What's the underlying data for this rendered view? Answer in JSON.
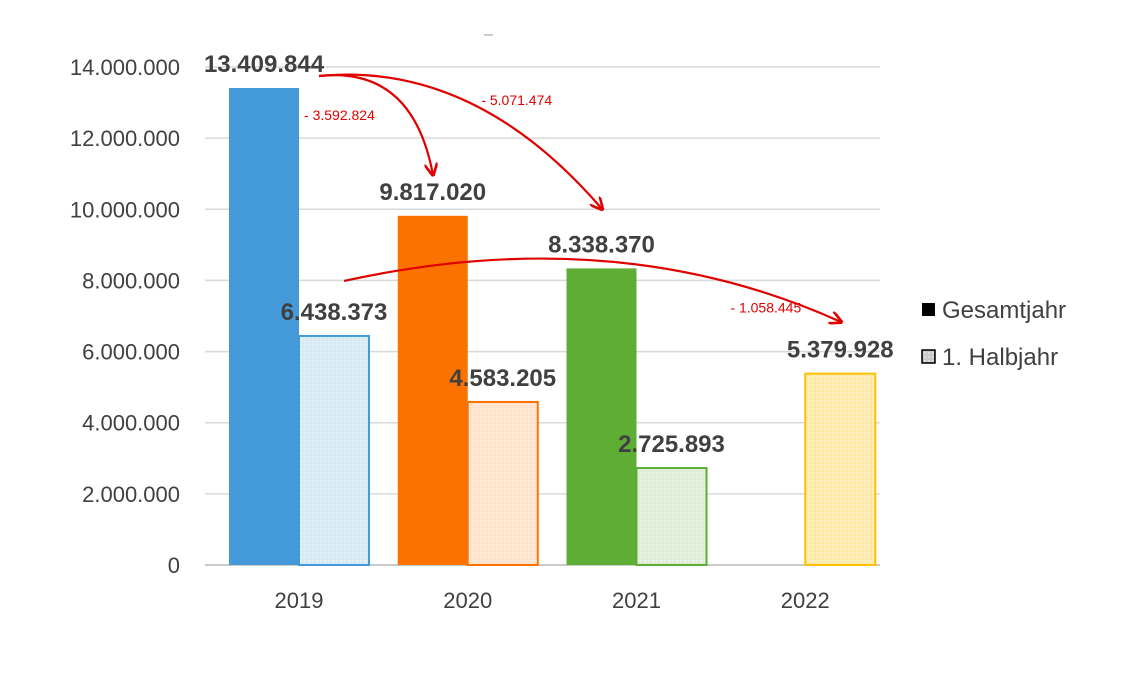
{
  "chart_data": {
    "type": "bar",
    "categories": [
      "2019",
      "2020",
      "2021",
      "2022"
    ],
    "series": [
      {
        "name": "Gesamtjahr",
        "values": [
          13409844,
          9817020,
          8338370,
          null
        ]
      },
      {
        "name": "1. Halbjahr",
        "values": [
          6438373,
          4583205,
          2725893,
          5379928
        ]
      }
    ],
    "data_labels": {
      "Gesamtjahr": [
        "13.409.844",
        "9.817.020",
        "8.338.370",
        ""
      ],
      "1. Halbjahr": [
        "6.438.373",
        "4.583.205",
        "2.725.893",
        "5.379.928"
      ]
    },
    "category_colors": [
      "#4499d9",
      "#fc7200",
      "#5ead35",
      "#ffc000"
    ],
    "ylim": [
      0,
      14000000
    ],
    "yticks": [
      0,
      2000000,
      4000000,
      6000000,
      8000000,
      10000000,
      12000000,
      14000000
    ],
    "ytick_labels": [
      "0",
      "2.000.000",
      "4.000.000",
      "6.000.000",
      "8.000.000",
      "10.000.000",
      "12.000.000",
      "14.000.000"
    ],
    "grid": true,
    "legend_position": "right",
    "legend": [
      "Gesamtjahr",
      "1. Halbjahr"
    ],
    "annotations": [
      {
        "text": "- 3.592.824",
        "from": {
          "series": "Gesamtjahr",
          "category": "2019"
        },
        "to": {
          "series": "Gesamtjahr",
          "category": "2020"
        }
      },
      {
        "text": "- 5.071.474",
        "from": {
          "series": "Gesamtjahr",
          "category": "2019"
        },
        "to": {
          "series": "Gesamtjahr",
          "category": "2021"
        }
      },
      {
        "text": "- 1.058.445",
        "from": {
          "series": "1. Halbjahr",
          "category": "2019"
        },
        "to": {
          "series": "1. Halbjahr",
          "category": "2022"
        }
      }
    ],
    "annotation_color": "#e00000"
  }
}
